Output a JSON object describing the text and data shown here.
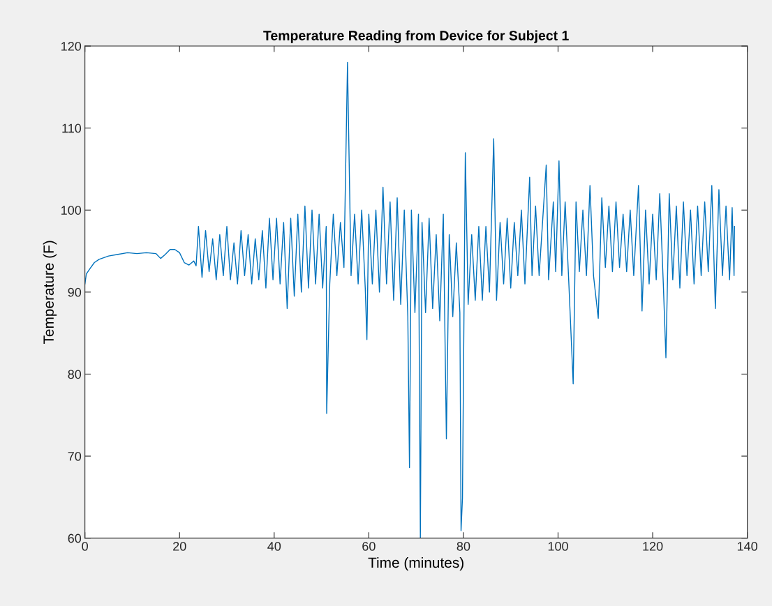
{
  "chart_data": {
    "type": "line",
    "title": "Temperature Reading from Device for Subject 1",
    "xlabel": "Time (minutes)",
    "ylabel": "Temperature (F)",
    "xlim": [
      0,
      140
    ],
    "xticks": [
      0,
      20,
      40,
      60,
      80,
      100,
      120,
      140
    ],
    "ylim": [
      60,
      120
    ],
    "yticks": [
      60,
      70,
      80,
      90,
      100,
      110,
      120
    ],
    "grid": false,
    "marker": "none",
    "line_style": "solid",
    "series": [
      {
        "color": "#0072bd",
        "x": [
          0,
          0.3,
          1,
          2,
          3,
          5,
          7,
          9,
          11,
          13,
          15,
          16,
          17,
          18,
          19,
          20,
          21,
          22,
          23,
          23.5,
          24,
          24.75,
          25.5,
          26.25,
          27,
          27.75,
          28.5,
          29.25,
          30,
          30.75,
          31.5,
          32.25,
          33,
          33.75,
          34.5,
          35.25,
          36,
          36.75,
          37.5,
          38.25,
          39,
          39.75,
          40.5,
          41.25,
          42,
          42.75,
          43.5,
          44.25,
          45,
          45.75,
          46.5,
          47.25,
          48,
          48.75,
          49.5,
          50.25,
          51,
          51.1,
          51.75,
          52.5,
          53.25,
          54,
          54.75,
          55.5,
          56.25,
          57,
          57.75,
          58.5,
          59.25,
          59.6,
          60,
          60.75,
          61.5,
          62.25,
          63,
          63.75,
          64.5,
          65.25,
          66,
          66.75,
          67.5,
          68.25,
          68.6,
          69,
          69.75,
          70.5,
          70.9,
          71.25,
          72,
          72.75,
          73.5,
          74.25,
          75,
          75.75,
          76.4,
          77,
          77.75,
          78.5,
          79.25,
          79.5,
          79.8,
          80.4,
          81,
          81.75,
          82.5,
          83.25,
          84,
          84.75,
          85.5,
          86.4,
          87,
          87.75,
          88.5,
          89.25,
          90,
          90.75,
          91.5,
          92.25,
          93,
          94,
          94.5,
          95.25,
          96,
          97.5,
          98,
          99,
          99.5,
          100.2,
          100.8,
          101.5,
          102.25,
          103.2,
          103.8,
          104.5,
          105.25,
          106,
          106.75,
          107.5,
          108.5,
          109.25,
          110,
          110.75,
          111.5,
          112.25,
          113,
          113.75,
          114.5,
          115.25,
          116,
          117,
          117.75,
          118.5,
          119.25,
          120,
          120.75,
          121.5,
          122.25,
          122.8,
          123.5,
          124.25,
          125,
          125.75,
          126.5,
          127.25,
          128,
          128.75,
          129.5,
          130.25,
          131,
          131.75,
          132.5,
          133.25,
          134,
          134.75,
          135.5,
          136.25,
          136.8,
          137.2,
          137.3
        ],
        "values": [
          91.0,
          92.2,
          92.8,
          93.6,
          94.0,
          94.4,
          94.6,
          94.8,
          94.7,
          94.8,
          94.7,
          94.1,
          94.6,
          95.2,
          95.2,
          94.8,
          93.6,
          93.3,
          93.8,
          93.2,
          98,
          91.8,
          97.5,
          92.5,
          96.5,
          91.5,
          97,
          92,
          98,
          91.5,
          96,
          91,
          97.5,
          92,
          97,
          91,
          96.5,
          91.5,
          97.5,
          90.5,
          99,
          91.5,
          99,
          91,
          98.5,
          88,
          99,
          89.5,
          99.5,
          90,
          100.5,
          90.5,
          100,
          91,
          99.5,
          90.5,
          98,
          75.2,
          91,
          99.5,
          92,
          98.5,
          93,
          118,
          92,
          99.5,
          91,
          100,
          90.5,
          84.2,
          99.5,
          91,
          100,
          90,
          102.8,
          91,
          101,
          89,
          101.5,
          88.5,
          100,
          87,
          68.6,
          100,
          87.5,
          99.5,
          60,
          98.5,
          87.5,
          99,
          88,
          97,
          86.5,
          99.5,
          72.1,
          97,
          87,
          96,
          87.5,
          60.9,
          64.9,
          107,
          88.5,
          97,
          89,
          98,
          89,
          98,
          90,
          108.7,
          89,
          98.5,
          91,
          99,
          90.5,
          98.5,
          92,
          100,
          91,
          104,
          92,
          100.5,
          92,
          105.5,
          91.5,
          101,
          92.5,
          106,
          92,
          101,
          91.5,
          78.8,
          101,
          92.5,
          100,
          92,
          103,
          92,
          86.8,
          101.5,
          93,
          100.5,
          92.5,
          101,
          93,
          99.5,
          92.5,
          100,
          92,
          103,
          87.7,
          100,
          91,
          99.5,
          91.5,
          102,
          91,
          82,
          102,
          91.5,
          100.5,
          90.5,
          101,
          92,
          100,
          91,
          100.5,
          92,
          101,
          92.5,
          103,
          88,
          102.5,
          92,
          100.5,
          91.5,
          100.3,
          92,
          98
        ]
      }
    ]
  }
}
